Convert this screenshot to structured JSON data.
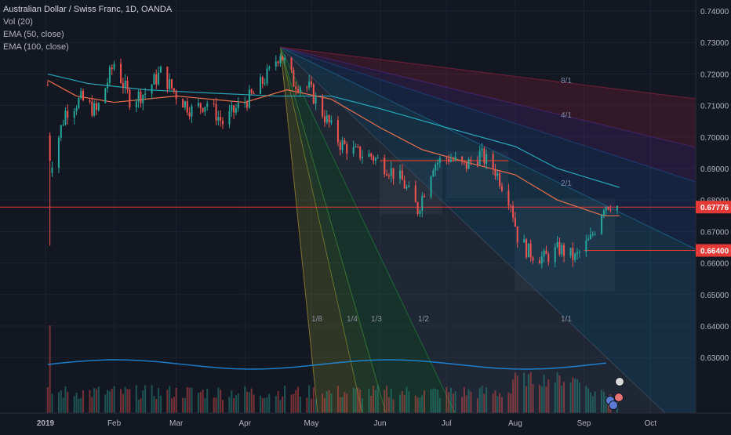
{
  "chart_data": {
    "type": "candlestick",
    "title": "Australian Dollar / Swiss Franc, 1D, OANDA",
    "indicators": [
      "Vol (20)",
      "EMA (50, close)",
      "EMA (100, close)"
    ],
    "x_tick_labels": [
      "2019",
      "Feb",
      "Mar",
      "Apr",
      "May",
      "Jun",
      "Jul",
      "Aug",
      "Sep",
      "Oct"
    ],
    "y_tick_labels": [
      "0.74000",
      "0.73000",
      "0.72000",
      "0.71000",
      "0.70000",
      "0.69000",
      "0.68000",
      "0.67000",
      "0.66000",
      "0.65000",
      "0.64000",
      "0.63000"
    ],
    "ylim": [
      0.6225,
      0.7425
    ],
    "grid": true,
    "last_price": "0.67776",
    "marked_level": "0.66400",
    "fan_labels_lower": [
      "1/8",
      "1/4",
      "1/3",
      "1/2",
      "1/1"
    ],
    "fan_labels_upper": [
      "2/1",
      "8/1",
      "4/1"
    ],
    "close_path": [
      [
        "2019-01-02",
        0.7165
      ],
      [
        "2019-01-03",
        0.69
      ],
      [
        "2019-01-10",
        0.708
      ],
      [
        "2019-01-17",
        0.712
      ],
      [
        "2019-01-24",
        0.708
      ],
      [
        "2019-02-01",
        0.7235
      ],
      [
        "2019-02-08",
        0.712
      ],
      [
        "2019-02-15",
        0.714
      ],
      [
        "2019-02-22",
        0.7205
      ],
      [
        "2019-03-01",
        0.7135
      ],
      [
        "2019-03-08",
        0.7085
      ],
      [
        "2019-03-15",
        0.711
      ],
      [
        "2019-03-22",
        0.7045
      ],
      [
        "2019-03-29",
        0.7095
      ],
      [
        "2019-04-05",
        0.7135
      ],
      [
        "2019-04-12",
        0.7205
      ],
      [
        "2019-04-17",
        0.727
      ],
      [
        "2019-04-23",
        0.7175
      ],
      [
        "2019-04-30",
        0.7155
      ],
      [
        "2019-05-07",
        0.7065
      ],
      [
        "2019-05-14",
        0.698
      ],
      [
        "2019-05-21",
        0.695
      ],
      [
        "2019-05-28",
        0.694
      ],
      [
        "2019-06-04",
        0.6905
      ],
      [
        "2019-06-11",
        0.686
      ],
      [
        "2019-06-18",
        0.677
      ],
      [
        "2019-06-25",
        0.6915
      ],
      [
        "2019-07-02",
        0.6935
      ],
      [
        "2019-07-09",
        0.6905
      ],
      [
        "2019-07-16",
        0.6945
      ],
      [
        "2019-07-23",
        0.6895
      ],
      [
        "2019-07-30",
        0.6795
      ],
      [
        "2019-08-02",
        0.6685
      ],
      [
        "2019-08-07",
        0.6635
      ],
      [
        "2019-08-14",
        0.6615
      ],
      [
        "2019-08-21",
        0.6645
      ],
      [
        "2019-08-28",
        0.6615
      ],
      [
        "2019-09-04",
        0.6675
      ],
      [
        "2019-09-10",
        0.6785
      ],
      [
        "2019-09-13",
        0.679
      ],
      [
        "2019-09-17",
        0.6778
      ]
    ],
    "ema50": [
      [
        "2019-01-02",
        0.718
      ],
      [
        "2019-01-15",
        0.713
      ],
      [
        "2019-02-01",
        0.711
      ],
      [
        "2019-03-01",
        0.713
      ],
      [
        "2019-04-01",
        0.711
      ],
      [
        "2019-04-20",
        0.715
      ],
      [
        "2019-05-10",
        0.712
      ],
      [
        "2019-06-01",
        0.703
      ],
      [
        "2019-06-20",
        0.696
      ],
      [
        "2019-07-10",
        0.692
      ],
      [
        "2019-08-01",
        0.688
      ],
      [
        "2019-08-20",
        0.68
      ],
      [
        "2019-09-10",
        0.675
      ],
      [
        "2019-09-17",
        0.675
      ]
    ],
    "ema100": [
      [
        "2019-01-02",
        0.72
      ],
      [
        "2019-01-20",
        0.717
      ],
      [
        "2019-02-15",
        0.715
      ],
      [
        "2019-03-15",
        0.714
      ],
      [
        "2019-04-15",
        0.713
      ],
      [
        "2019-05-10",
        0.713
      ],
      [
        "2019-06-01",
        0.709
      ],
      [
        "2019-07-01",
        0.703
      ],
      [
        "2019-08-01",
        0.697
      ],
      [
        "2019-08-20",
        0.69
      ],
      [
        "2019-09-17",
        0.684
      ]
    ]
  }
}
